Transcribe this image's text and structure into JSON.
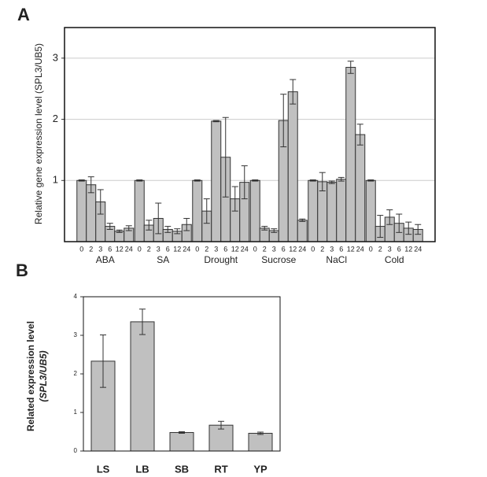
{
  "chart_data": [
    {
      "type": "bar",
      "panel_label": "A",
      "ylabel": "Relative gene expression level (SPL3/UB5)",
      "timepoints": [
        "0",
        "2",
        "3",
        "6",
        "12",
        "24"
      ],
      "groups": [
        {
          "name": "ABA",
          "values": [
            1.0,
            0.93,
            0.65,
            0.25,
            0.17,
            0.22
          ],
          "errors": [
            0.01,
            0.13,
            0.2,
            0.05,
            0.02,
            0.04
          ]
        },
        {
          "name": "SA",
          "values": [
            1.0,
            0.27,
            0.38,
            0.2,
            0.17,
            0.28
          ],
          "errors": [
            0.01,
            0.08,
            0.25,
            0.05,
            0.04,
            0.1
          ]
        },
        {
          "name": "Drought",
          "values": [
            1.0,
            0.5,
            1.97,
            1.38,
            0.7,
            0.97
          ],
          "errors": [
            0.01,
            0.2,
            0.01,
            0.65,
            0.2,
            0.27
          ]
        },
        {
          "name": "Sucrose",
          "values": [
            1.0,
            0.22,
            0.18,
            1.98,
            2.45,
            0.35
          ],
          "errors": [
            0.01,
            0.03,
            0.03,
            0.43,
            0.2,
            0.02
          ]
        },
        {
          "name": "NaCl",
          "values": [
            1.0,
            0.98,
            0.97,
            1.02,
            2.85,
            1.75
          ],
          "errors": [
            0.01,
            0.15,
            0.02,
            0.03,
            0.1,
            0.17
          ]
        },
        {
          "name": "Cold",
          "values": [
            1.0,
            0.25,
            0.4,
            0.3,
            0.22,
            0.2
          ],
          "errors": [
            0.01,
            0.18,
            0.12,
            0.15,
            0.1,
            0.08
          ]
        }
      ],
      "color": "#c0c0c0",
      "ylim": [
        0,
        3.5
      ],
      "yticks": [
        1,
        2,
        3
      ],
      "grid": true
    },
    {
      "type": "bar",
      "panel_label": "B",
      "ylabel": [
        "Related expression level",
        "(SPL3/UB5)"
      ],
      "categories": [
        "LS",
        "LB",
        "SB",
        "RT",
        "YP"
      ],
      "values": [
        2.33,
        3.35,
        0.48,
        0.67,
        0.46
      ],
      "errors": [
        0.68,
        0.33,
        0.02,
        0.1,
        0.03
      ],
      "color": "#c0c0c0",
      "ylim": [
        0,
        4
      ],
      "yticks": [
        0,
        1,
        2,
        3,
        4
      ],
      "grid": false
    }
  ]
}
